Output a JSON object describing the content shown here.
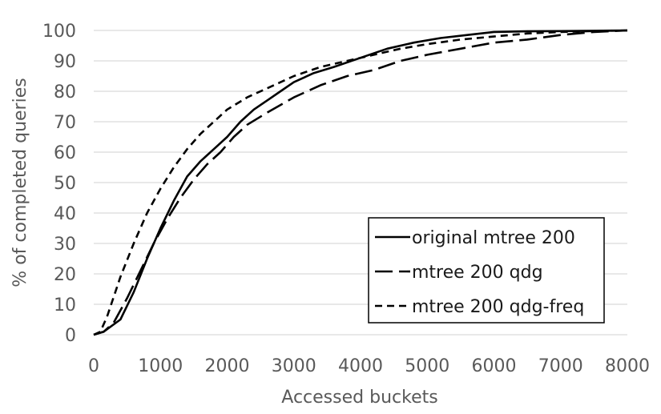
{
  "chart_data": {
    "type": "line",
    "title": "",
    "xlabel": "Accessed buckets",
    "ylabel": "% of completed queries",
    "xlim": [
      0,
      8000
    ],
    "ylim": [
      0,
      100
    ],
    "x_ticks": [
      0,
      1000,
      2000,
      3000,
      4000,
      5000,
      6000,
      7000,
      8000
    ],
    "y_ticks": [
      0,
      10,
      20,
      30,
      40,
      50,
      60,
      70,
      80,
      90,
      100
    ],
    "grid": "horizontal",
    "legend_position": "bottom-right",
    "series": [
      {
        "name": "original mtree 200",
        "style": "solid",
        "color": "#000000",
        "x": [
          0,
          150,
          400,
          600,
          800,
          1000,
          1200,
          1400,
          1600,
          1800,
          2000,
          2200,
          2400,
          2600,
          2800,
          3000,
          3300,
          3600,
          4000,
          4400,
          4800,
          5200,
          5600,
          6000,
          6500,
          7000,
          7500,
          8000
        ],
        "y": [
          0,
          1,
          5,
          14,
          25,
          35,
          44,
          52,
          57,
          61,
          65,
          70,
          74,
          77,
          80,
          83,
          86,
          88,
          91,
          94,
          96,
          97.5,
          98.5,
          99.5,
          99.7,
          99.8,
          99.9,
          100
        ]
      },
      {
        "name": "mtree 200 qdg",
        "style": "long-dash",
        "color": "#000000",
        "x": [
          0,
          150,
          300,
          500,
          700,
          900,
          1100,
          1300,
          1500,
          1700,
          1900,
          2100,
          2300,
          2600,
          3000,
          3400,
          3800,
          4200,
          4600,
          5000,
          5500,
          6000,
          6500,
          7000,
          7500,
          8000
        ],
        "y": [
          0,
          1,
          4,
          12,
          21,
          30,
          38,
          45,
          51,
          56,
          60,
          65,
          69,
          73,
          78,
          82,
          85,
          87,
          90,
          92,
          94,
          96,
          97,
          98.5,
          99.5,
          100
        ]
      },
      {
        "name": "mtree 200 qdg-freq",
        "style": "short-dash",
        "color": "#000000",
        "x": [
          0,
          100,
          200,
          400,
          600,
          800,
          1000,
          1200,
          1400,
          1600,
          1800,
          2000,
          2300,
          2600,
          3000,
          3400,
          3800,
          4200,
          4600,
          5000,
          5500,
          6000,
          6500,
          7000,
          7500,
          8000
        ],
        "y": [
          0,
          1,
          6,
          19,
          30,
          40,
          48,
          55,
          61,
          66,
          70,
          74,
          78,
          81,
          85,
          88,
          90,
          92,
          94,
          95.5,
          97,
          98,
          99,
          99.5,
          99.8,
          100
        ]
      }
    ]
  }
}
